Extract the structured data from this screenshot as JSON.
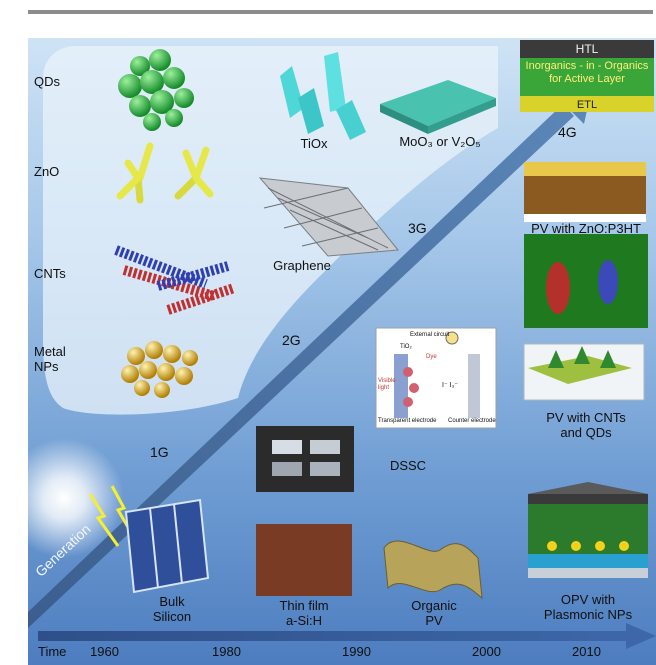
{
  "labels": {
    "qds": "QDs",
    "zno": "ZnO",
    "cnts": "CNTs",
    "metal_nps": "Metal\nNPs",
    "tiox": "TiOx",
    "graphene": "Graphene",
    "moo3": "MoO₃ or V₂O₅",
    "htl": "HTL",
    "active_layer": "Inorganics - in - Organics\nfor Active Layer",
    "etl": "ETL",
    "pv_zno": "PV with ZnO:P3HT",
    "pv_cnts": "PV with CNTs\nand QDs",
    "dssc": "DSSC",
    "bulk_silicon": "Bulk\nSilicon",
    "thin_film": "Thin film\na-Si:H",
    "organic_pv": "Organic\nPV",
    "opv_plasmonic": "OPV with\nPlasmonic NPs",
    "external_circuit": "External circuit",
    "tio2": "TiO₂",
    "dye": "Dye",
    "visible_light": "Visible\nlight",
    "transparent_electrode": "Transparent electrode",
    "counter_electrode": "Counter electrode",
    "electrolyte_ions": "I⁻  I₃⁻"
  },
  "generations": [
    "1G",
    "2G",
    "3G",
    "4G"
  ],
  "generation_axis_label": "Generation",
  "timeline": {
    "title": "Time",
    "years": [
      "1960",
      "1980",
      "1990",
      "2000",
      "2010"
    ]
  }
}
